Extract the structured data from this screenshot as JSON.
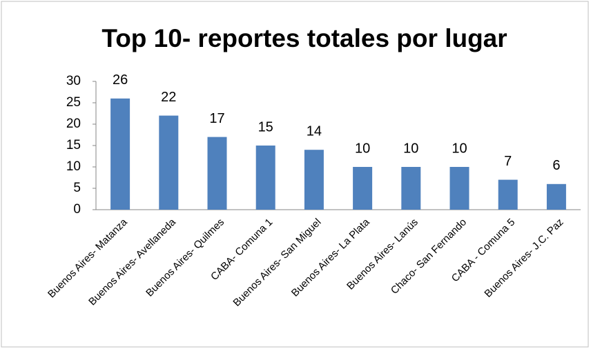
{
  "chart_data": {
    "type": "bar",
    "title": "Top 10- reportes totales por lugar",
    "categories": [
      "Buenos Aires- Matanza",
      "Buenos Aires- Avellaneda",
      "Buenos Aires- Quilmes",
      "CABA- Comuna 1",
      "Buenos Aires- San Miguel",
      "Buenos Aires- La Plata",
      "Buenos Aires- Lanús",
      "Chaco- San Fernando",
      "CABA - Comuna 5",
      "Buenos Aires- J.C. Paz"
    ],
    "values": [
      26,
      22,
      17,
      15,
      14,
      10,
      10,
      10,
      7,
      6
    ],
    "color": "#4f81bd",
    "ylim": [
      0,
      30
    ],
    "yticks": [
      0,
      5,
      10,
      15,
      20,
      25,
      30
    ],
    "grid": false,
    "data_labels": true
  }
}
